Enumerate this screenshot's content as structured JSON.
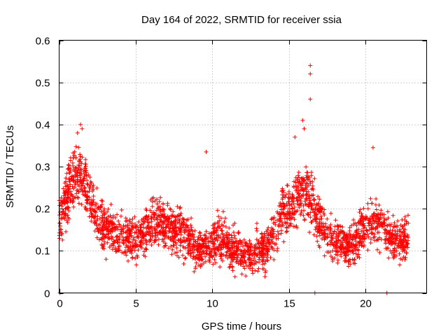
{
  "chart_data": {
    "type": "scatter",
    "title": "Day 164 of 2022, SRMTID for receiver ssia",
    "xlabel": "GPS time / hours",
    "ylabel": "SRMTID / TECUs",
    "xlim": [
      0,
      24
    ],
    "ylim": [
      0,
      0.6
    ],
    "xticks": [
      0,
      5,
      10,
      15,
      20
    ],
    "xtick_labels": [
      "0",
      "5",
      "10",
      "15",
      "20"
    ],
    "yticks": [
      0,
      0.1,
      0.2,
      0.3,
      0.4,
      0.5,
      0.6
    ],
    "ytick_labels": [
      "0",
      "0.1",
      "0.2",
      "0.3",
      "0.4",
      "0.5",
      "0.6"
    ],
    "grid": true,
    "marker": "plus",
    "color": "#ff0000",
    "series": [
      {
        "name": "SRMTID",
        "profile_x": [
          0,
          0.3,
          0.6,
          1.0,
          1.4,
          1.8,
          2.2,
          2.6,
          3.0,
          3.5,
          4.0,
          4.5,
          5.0,
          5.5,
          6.0,
          6.5,
          7.0,
          7.5,
          8.0,
          8.5,
          9.0,
          9.5,
          10.0,
          10.5,
          11.0,
          11.5,
          12.0,
          12.5,
          13.0,
          13.5,
          14.0,
          14.5,
          15.0,
          15.5,
          16.0,
          16.5,
          17.0,
          17.5,
          18.0,
          18.5,
          19.0,
          19.5,
          20.0,
          20.5,
          21.0,
          21.5,
          22.0,
          22.5,
          22.8
        ],
        "profile_y": [
          0.17,
          0.2,
          0.24,
          0.27,
          0.28,
          0.25,
          0.2,
          0.17,
          0.15,
          0.15,
          0.14,
          0.13,
          0.13,
          0.14,
          0.16,
          0.17,
          0.16,
          0.15,
          0.15,
          0.13,
          0.1,
          0.11,
          0.12,
          0.13,
          0.12,
          0.1,
          0.09,
          0.09,
          0.1,
          0.1,
          0.14,
          0.18,
          0.2,
          0.23,
          0.24,
          0.22,
          0.17,
          0.14,
          0.12,
          0.11,
          0.11,
          0.13,
          0.16,
          0.17,
          0.16,
          0.14,
          0.12,
          0.13,
          0.13
        ],
        "outliers": [
          {
            "x": 1.4,
            "y": 0.4
          },
          {
            "x": 1.5,
            "y": 0.39
          },
          {
            "x": 1.2,
            "y": 0.38
          },
          {
            "x": 9.6,
            "y": 0.335
          },
          {
            "x": 15.4,
            "y": 0.37
          },
          {
            "x": 15.9,
            "y": 0.41
          },
          {
            "x": 16.0,
            "y": 0.39
          },
          {
            "x": 16.4,
            "y": 0.54
          },
          {
            "x": 16.4,
            "y": 0.52
          },
          {
            "x": 16.4,
            "y": 0.46
          },
          {
            "x": 20.5,
            "y": 0.345
          },
          {
            "x": 0.05,
            "y": 0.0
          },
          {
            "x": 16.7,
            "y": 0.0
          },
          {
            "x": 21.4,
            "y": 0.0
          }
        ]
      }
    ]
  }
}
